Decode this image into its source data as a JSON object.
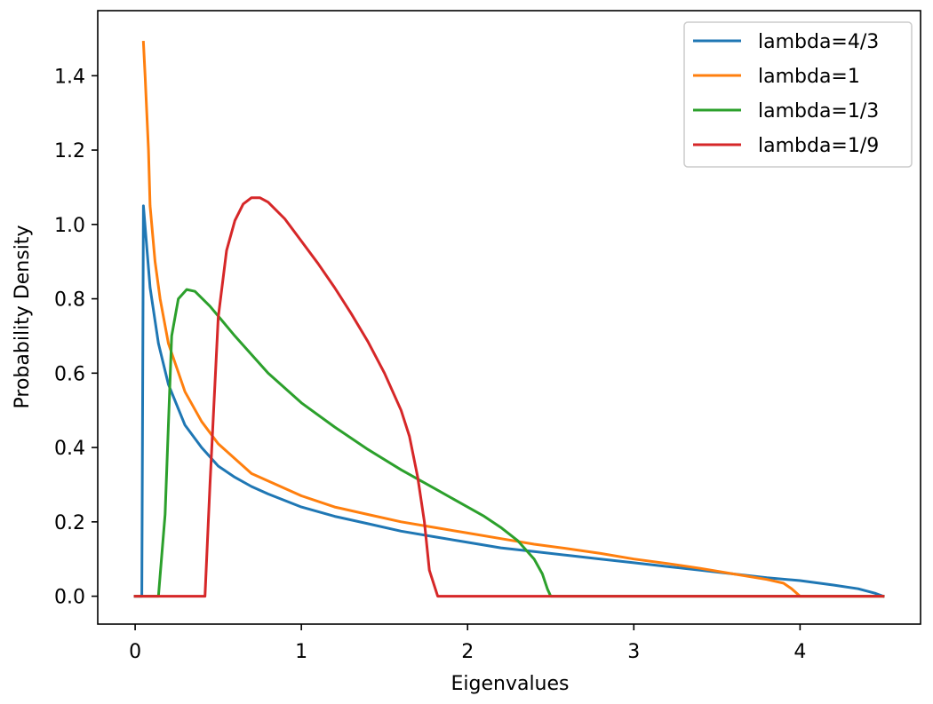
{
  "chart_data": {
    "type": "line",
    "title": "",
    "xlabel": "Eigenvalues",
    "ylabel": "Probability Density",
    "xlim": [
      -0.225,
      4.725
    ],
    "ylim": [
      -0.075,
      1.575
    ],
    "xticks": [
      0,
      1,
      2,
      3,
      4
    ],
    "xtick_labels": [
      "0",
      "1",
      "2",
      "3",
      "4"
    ],
    "yticks": [
      0.0,
      0.2,
      0.4,
      0.6,
      0.8,
      1.0,
      1.2,
      1.4
    ],
    "ytick_labels": [
      "0.0",
      "0.2",
      "0.4",
      "0.6",
      "0.8",
      "1.0",
      "1.2",
      "1.4"
    ],
    "grid": false,
    "legend_position": "top-right",
    "series": [
      {
        "name": "lambda=4/3",
        "color": "#1f77b4",
        "points": [
          [
            0.0,
            0.0
          ],
          [
            0.04,
            0.0
          ],
          [
            0.05,
            1.05
          ],
          [
            0.09,
            0.83
          ],
          [
            0.14,
            0.68
          ],
          [
            0.2,
            0.57
          ],
          [
            0.3,
            0.46
          ],
          [
            0.4,
            0.4
          ],
          [
            0.5,
            0.35
          ],
          [
            0.6,
            0.32
          ],
          [
            0.7,
            0.295
          ],
          [
            0.8,
            0.275
          ],
          [
            1.0,
            0.24
          ],
          [
            1.2,
            0.215
          ],
          [
            1.4,
            0.195
          ],
          [
            1.6,
            0.175
          ],
          [
            1.8,
            0.16
          ],
          [
            2.0,
            0.145
          ],
          [
            2.2,
            0.13
          ],
          [
            2.4,
            0.12
          ],
          [
            2.6,
            0.11
          ],
          [
            2.8,
            0.1
          ],
          [
            3.0,
            0.09
          ],
          [
            3.2,
            0.08
          ],
          [
            3.4,
            0.07
          ],
          [
            3.6,
            0.06
          ],
          [
            3.8,
            0.05
          ],
          [
            4.0,
            0.042
          ],
          [
            4.2,
            0.03
          ],
          [
            4.35,
            0.02
          ],
          [
            4.45,
            0.008
          ],
          [
            4.5,
            0.0
          ]
        ]
      },
      {
        "name": "lambda=1",
        "color": "#ff7f0e",
        "points": [
          [
            0.05,
            1.49
          ],
          [
            0.06,
            1.4
          ],
          [
            0.08,
            1.2
          ],
          [
            0.09,
            1.05
          ],
          [
            0.12,
            0.9
          ],
          [
            0.15,
            0.8
          ],
          [
            0.2,
            0.68
          ],
          [
            0.3,
            0.55
          ],
          [
            0.4,
            0.47
          ],
          [
            0.5,
            0.41
          ],
          [
            0.6,
            0.37
          ],
          [
            0.7,
            0.33
          ],
          [
            0.8,
            0.31
          ],
          [
            1.0,
            0.27
          ],
          [
            1.2,
            0.24
          ],
          [
            1.4,
            0.22
          ],
          [
            1.6,
            0.2
          ],
          [
            1.8,
            0.185
          ],
          [
            2.0,
            0.17
          ],
          [
            2.2,
            0.155
          ],
          [
            2.4,
            0.14
          ],
          [
            2.6,
            0.128
          ],
          [
            2.8,
            0.115
          ],
          [
            3.0,
            0.1
          ],
          [
            3.2,
            0.088
          ],
          [
            3.4,
            0.075
          ],
          [
            3.6,
            0.06
          ],
          [
            3.8,
            0.045
          ],
          [
            3.9,
            0.035
          ],
          [
            3.95,
            0.02
          ],
          [
            4.0,
            0.0
          ],
          [
            4.5,
            0.0
          ]
        ]
      },
      {
        "name": "lambda=1/3",
        "color": "#2ca02c",
        "points": [
          [
            0.0,
            0.0
          ],
          [
            0.14,
            0.0
          ],
          [
            0.18,
            0.22
          ],
          [
            0.22,
            0.7
          ],
          [
            0.26,
            0.8
          ],
          [
            0.31,
            0.825
          ],
          [
            0.36,
            0.82
          ],
          [
            0.45,
            0.78
          ],
          [
            0.6,
            0.7
          ],
          [
            0.8,
            0.6
          ],
          [
            1.0,
            0.52
          ],
          [
            1.2,
            0.455
          ],
          [
            1.4,
            0.395
          ],
          [
            1.6,
            0.34
          ],
          [
            1.8,
            0.29
          ],
          [
            2.0,
            0.24
          ],
          [
            2.1,
            0.215
          ],
          [
            2.2,
            0.185
          ],
          [
            2.3,
            0.15
          ],
          [
            2.4,
            0.1
          ],
          [
            2.45,
            0.06
          ],
          [
            2.48,
            0.02
          ],
          [
            2.5,
            0.0
          ],
          [
            4.5,
            0.0
          ]
        ]
      },
      {
        "name": "lambda=1/9",
        "color": "#d62728",
        "points": [
          [
            0.0,
            0.0
          ],
          [
            0.42,
            0.0
          ],
          [
            0.45,
            0.3
          ],
          [
            0.5,
            0.75
          ],
          [
            0.55,
            0.93
          ],
          [
            0.6,
            1.01
          ],
          [
            0.65,
            1.055
          ],
          [
            0.7,
            1.072
          ],
          [
            0.75,
            1.072
          ],
          [
            0.8,
            1.06
          ],
          [
            0.9,
            1.015
          ],
          [
            1.0,
            0.955
          ],
          [
            1.1,
            0.895
          ],
          [
            1.2,
            0.83
          ],
          [
            1.3,
            0.76
          ],
          [
            1.4,
            0.685
          ],
          [
            1.5,
            0.6
          ],
          [
            1.6,
            0.5
          ],
          [
            1.65,
            0.43
          ],
          [
            1.7,
            0.32
          ],
          [
            1.74,
            0.2
          ],
          [
            1.77,
            0.07
          ],
          [
            1.82,
            0.0
          ],
          [
            4.5,
            0.0
          ]
        ]
      }
    ]
  }
}
